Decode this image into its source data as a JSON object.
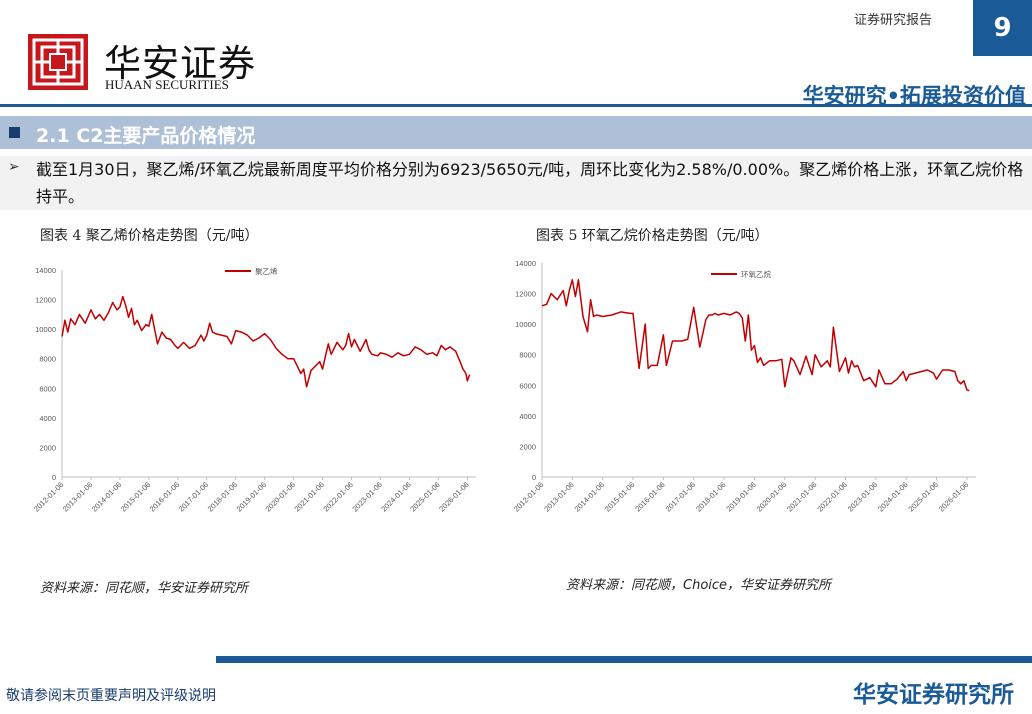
{
  "header": {
    "logo_cn": "华安证券",
    "logo_en": "HUAAN SECURITIES",
    "report_type": "证券研究报告",
    "page_number": "9",
    "slogan": "华安研究•拓展投资价值",
    "brand_color": "#1a5b97"
  },
  "section": {
    "title": "2.1 C2主要产品价格情况"
  },
  "bullet": {
    "text": "截至1月30日，聚乙烯/环氧乙烷最新周度平均价格分别为6923/5650元/吨，周环比变化为2.58%/0.00%。聚乙烯价格上涨，环氧乙烷价格持平。"
  },
  "figures": [
    {
      "title": "图表 4 聚乙烯价格走势图（元/吨）",
      "source": "资料来源：同花顺，华安证券研究所"
    },
    {
      "title": "图表 5 环氧乙烷价格走势图（元/吨）",
      "source": "资料来源：同花顺，Choice，华安证券研究所"
    }
  ],
  "chart_data": [
    {
      "type": "line",
      "title": "",
      "xlabel": "",
      "ylabel": "",
      "ylim": [
        0,
        14000
      ],
      "yticks": [
        "0",
        "2000",
        "4000",
        "6000",
        "8000",
        "10000",
        "12000",
        "14000"
      ],
      "xticks": [
        "2012-01-06",
        "2013-01-06",
        "2014-01-06",
        "2015-01-06",
        "2016-01-06",
        "2017-01-06",
        "2018-01-06",
        "2019-01-06",
        "2020-01-06",
        "2021-01-06",
        "2022-01-06",
        "2023-01-06",
        "2024-01-06",
        "2025-01-06",
        "2026-01-06"
      ],
      "legend_position": "top",
      "series": [
        {
          "name": "聚乙烯",
          "color": "#c00000",
          "x": [
            2012.0,
            2012.1,
            2012.2,
            2012.3,
            2012.45,
            2012.6,
            2012.8,
            2013.0,
            2013.15,
            2013.3,
            2013.45,
            2013.6,
            2013.75,
            2013.9,
            2014.0,
            2014.1,
            2014.2,
            2014.3,
            2014.4,
            2014.5,
            2014.6,
            2014.75,
            2014.9,
            2015.0,
            2015.1,
            2015.2,
            2015.3,
            2015.45,
            2015.6,
            2015.75,
            2015.9,
            2016.0,
            2016.2,
            2016.4,
            2016.6,
            2016.8,
            2016.9,
            2017.0,
            2017.1,
            2017.2,
            2017.3,
            2017.5,
            2017.7,
            2017.85,
            2018.0,
            2018.2,
            2018.4,
            2018.6,
            2018.8,
            2019.0,
            2019.2,
            2019.4,
            2019.6,
            2019.8,
            2020.0,
            2020.15,
            2020.25,
            2020.35,
            2020.45,
            2020.6,
            2020.75,
            2020.9,
            2021.0,
            2021.1,
            2021.2,
            2021.3,
            2021.4,
            2021.5,
            2021.7,
            2021.8,
            2021.9,
            2022.0,
            2022.1,
            2022.3,
            2022.5,
            2022.6,
            2022.7,
            2022.9,
            2023.0,
            2023.2,
            2023.4,
            2023.6,
            2023.8,
            2024.0,
            2024.2,
            2024.4,
            2024.6,
            2024.8,
            2024.95,
            2025.1,
            2025.25,
            2025.4,
            2025.6,
            2025.75,
            2025.85,
            2025.95,
            2026.0,
            2026.08
          ],
          "y": [
            9500,
            10600,
            9800,
            10700,
            10300,
            11000,
            10400,
            11300,
            10700,
            11000,
            10600,
            11100,
            11800,
            11300,
            11500,
            12200,
            11600,
            10800,
            11400,
            10300,
            10600,
            9900,
            10300,
            10200,
            11000,
            10000,
            9000,
            9800,
            9400,
            9300,
            8900,
            8700,
            9100,
            8700,
            8900,
            9600,
            9200,
            9600,
            10400,
            9800,
            9700,
            9600,
            9500,
            9000,
            9900,
            9800,
            9600,
            9200,
            9400,
            9700,
            9300,
            8700,
            8300,
            8000,
            8000,
            7400,
            7000,
            7300,
            6100,
            7200,
            7500,
            7800,
            7300,
            8200,
            9000,
            8300,
            8700,
            9100,
            8600,
            8900,
            9700,
            8800,
            9300,
            8500,
            9300,
            8600,
            8300,
            8200,
            8400,
            8300,
            8100,
            8400,
            8200,
            8300,
            8800,
            8600,
            8300,
            8400,
            8200,
            8900,
            8600,
            8800,
            8500,
            7800,
            7300,
            7000,
            6500,
            6923
          ]
        }
      ]
    },
    {
      "type": "line",
      "title": "",
      "xlabel": "",
      "ylabel": "",
      "ylim": [
        0,
        14000
      ],
      "yticks": [
        "0",
        "2000",
        "4000",
        "6000",
        "8000",
        "10000",
        "12000",
        "14000"
      ],
      "xticks": [
        "2012-01-06",
        "2013-01-06",
        "2014-01-06",
        "2015-01-06",
        "2016-01-06",
        "2017-01-06",
        "2018-01-06",
        "2019-01-06",
        "2020-01-06",
        "2021-01-06",
        "2022-01-06",
        "2023-01-06",
        "2024-01-06",
        "2025-01-06",
        "2026-01-06"
      ],
      "legend_position": "top",
      "series": [
        {
          "name": "环氧乙烷",
          "color": "#c00000",
          "x": [
            2012.0,
            2012.15,
            2012.3,
            2012.5,
            2012.7,
            2012.8,
            2012.9,
            2013.0,
            2013.1,
            2013.2,
            2013.35,
            2013.5,
            2013.6,
            2013.7,
            2013.8,
            2014.0,
            2014.3,
            2014.6,
            2014.9,
            2015.0,
            2015.2,
            2015.4,
            2015.5,
            2015.6,
            2015.8,
            2016.0,
            2016.1,
            2016.3,
            2016.6,
            2016.8,
            2017.0,
            2017.2,
            2017.4,
            2017.5,
            2017.6,
            2017.7,
            2017.8,
            2018.0,
            2018.2,
            2018.4,
            2018.5,
            2018.6,
            2018.7,
            2018.8,
            2018.9,
            2019.0,
            2019.1,
            2019.2,
            2019.3,
            2019.5,
            2019.7,
            2019.9,
            2020.0,
            2020.2,
            2020.3,
            2020.5,
            2020.7,
            2020.9,
            2021.0,
            2021.2,
            2021.4,
            2021.5,
            2021.6,
            2021.8,
            2022.0,
            2022.1,
            2022.2,
            2022.3,
            2022.4,
            2022.6,
            2022.8,
            2023.0,
            2023.1,
            2023.3,
            2023.5,
            2023.7,
            2023.9,
            2024.0,
            2024.1,
            2024.3,
            2024.5,
            2024.7,
            2024.9,
            2025.0,
            2025.2,
            2025.4,
            2025.6,
            2025.7,
            2025.8,
            2025.9,
            2026.0,
            2026.08
          ],
          "y": [
            11200,
            11300,
            12000,
            11600,
            12200,
            11200,
            12200,
            12900,
            11800,
            12900,
            10500,
            9500,
            11600,
            10500,
            10600,
            10500,
            10600,
            10800,
            10700,
            10700,
            7100,
            10000,
            7100,
            7300,
            7300,
            9300,
            7300,
            8900,
            8900,
            9000,
            11100,
            8500,
            10300,
            10600,
            10600,
            10700,
            10600,
            10700,
            10600,
            10800,
            10700,
            10400,
            8900,
            10600,
            8300,
            8600,
            7500,
            7800,
            7300,
            7600,
            7600,
            7700,
            5900,
            7800,
            7600,
            6700,
            7900,
            6700,
            8000,
            7200,
            7600,
            7200,
            9800,
            6900,
            7800,
            6800,
            7600,
            7200,
            7300,
            6300,
            6500,
            5900,
            7000,
            6100,
            6100,
            6400,
            6900,
            6300,
            6700,
            6800,
            6900,
            7000,
            6800,
            6400,
            7000,
            7000,
            6900,
            6300,
            6100,
            6300,
            5700,
            5650
          ]
        }
      ]
    }
  ],
  "footer": {
    "disclaimer": "敬请参阅末页重要声明及评级说明",
    "brand": "华安证券研究所"
  }
}
